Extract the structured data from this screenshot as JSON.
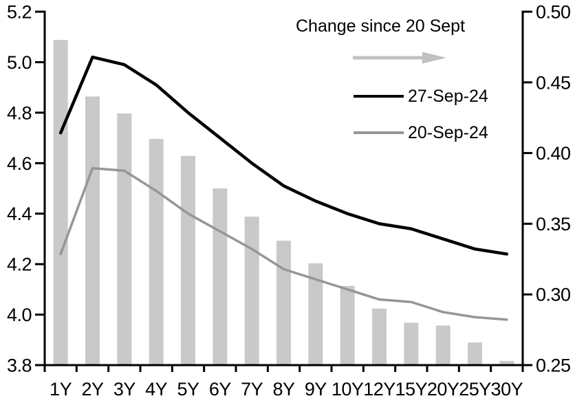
{
  "chart_data": {
    "type": "combo-bar-line",
    "categories": [
      "1Y",
      "2Y",
      "3Y",
      "4Y",
      "5Y",
      "6Y",
      "7Y",
      "8Y",
      "9Y",
      "10Y",
      "12Y",
      "15Y",
      "20Y",
      "25Y",
      "30Y"
    ],
    "series": [
      {
        "name": "Change since 20 Sept",
        "type": "bar",
        "axis": "right",
        "color": "#c9c9c9",
        "values": [
          0.48,
          0.44,
          0.428,
          0.41,
          0.398,
          0.375,
          0.355,
          0.338,
          0.322,
          0.306,
          0.29,
          0.28,
          0.278,
          0.266,
          0.253
        ]
      },
      {
        "name": "27-Sep-24",
        "type": "line",
        "axis": "left",
        "color": "#000000",
        "stroke_width": 4.5,
        "values": [
          4.72,
          5.02,
          4.99,
          4.91,
          4.8,
          4.7,
          4.6,
          4.51,
          4.45,
          4.4,
          4.36,
          4.34,
          4.3,
          4.26,
          4.24
        ]
      },
      {
        "name": "20-Sep-24",
        "type": "line",
        "axis": "left",
        "color": "#969696",
        "stroke_width": 3.5,
        "values": [
          4.24,
          4.58,
          4.57,
          4.49,
          4.4,
          4.33,
          4.26,
          4.18,
          4.14,
          4.1,
          4.06,
          4.05,
          4.01,
          3.99,
          3.98
        ]
      }
    ],
    "left_axis": {
      "min": 3.8,
      "max": 5.2,
      "step": 0.2,
      "tick_labels": [
        "5.2",
        "5.0",
        "4.8",
        "4.6",
        "4.4",
        "4.2",
        "4.0",
        "3.8"
      ]
    },
    "right_axis": {
      "min": 0.25,
      "max": 0.5,
      "step": 0.05,
      "tick_labels": [
        "0.50",
        "0.45",
        "0.40",
        "0.35",
        "0.30",
        "0.25"
      ]
    },
    "legend": {
      "change_label": "Change since 20 Sept",
      "arrow_color": "#c0c0c0"
    },
    "grid": "off",
    "legend_position": "top-right-inside"
  }
}
